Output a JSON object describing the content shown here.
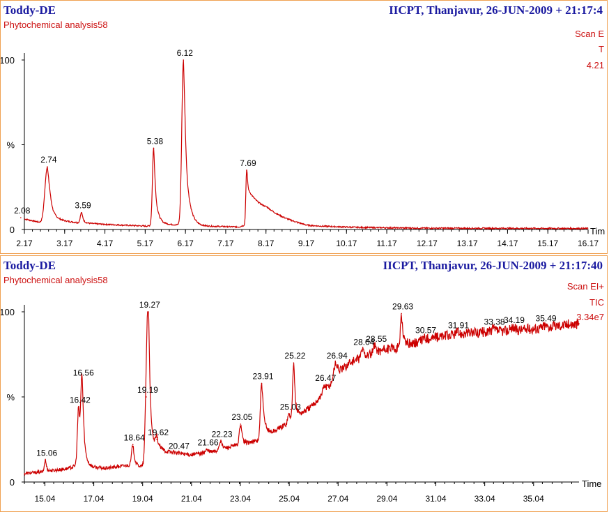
{
  "chart_data": [
    {
      "type": "line",
      "header_left": "Toddy-DE",
      "header_right": "IICPT, Thanjavur,  26-JUN-2009 + 21:17:4",
      "subtitle": "Phytochemical analysis58",
      "info_lines": [
        "Scan E",
        "T",
        "4.21"
      ],
      "xlabel": "Tim",
      "y_ticks": [
        "0",
        "%",
        "100"
      ],
      "x_ticks": [
        "2.17",
        "3.17",
        "4.17",
        "5.17",
        "6.17",
        "7.17",
        "8.17",
        "9.17",
        "10.17",
        "11.17",
        "12.17",
        "13.17",
        "14.17",
        "15.17",
        "16.17"
      ],
      "xlim": [
        2.17,
        16.17
      ],
      "ylim": [
        0,
        100
      ],
      "color": "#cc0000",
      "baseline": [
        [
          2.0,
          7
        ],
        [
          2.6,
          4
        ],
        [
          2.8,
          6
        ],
        [
          3.5,
          4
        ],
        [
          4.2,
          3
        ],
        [
          5.2,
          2
        ],
        [
          5.7,
          3
        ],
        [
          6.6,
          2
        ],
        [
          7.5,
          1.5
        ],
        [
          8.2,
          7
        ],
        [
          9.2,
          2
        ],
        [
          10.5,
          1.2
        ],
        [
          12,
          0.8
        ],
        [
          16.2,
          0.6
        ]
      ],
      "peaks": [
        {
          "x": 2.08,
          "y": 7,
          "w": 0.04,
          "tail": 0.1,
          "label": "2.08"
        },
        {
          "x": 2.74,
          "y": 37,
          "w": 0.06,
          "tail": 0.1,
          "label": "2.74"
        },
        {
          "x": 2.92,
          "y": 4,
          "w": 0.05,
          "tail": 0.08
        },
        {
          "x": 3.59,
          "y": 10,
          "w": 0.03,
          "tail": 0.05,
          "label": "3.59"
        },
        {
          "x": 5.38,
          "y": 48,
          "w": 0.03,
          "tail": 0.08,
          "label": "5.38"
        },
        {
          "x": 6.12,
          "y": 100,
          "w": 0.04,
          "tail": 0.1,
          "label": "6.12"
        },
        {
          "x": 7.69,
          "y": 35,
          "w": 0.02,
          "tail": 0.4,
          "label": "7.69"
        }
      ]
    },
    {
      "type": "line",
      "header_left": "Toddy-DE",
      "header_right": "IICPT, Thanjavur,  26-JUN-2009 + 21:17:40",
      "subtitle": "Phytochemical analysis58",
      "info_lines": [
        "Scan EI+",
        "TIC",
        "3.34e7"
      ],
      "xlabel": "Time",
      "y_ticks": [
        "0",
        "%",
        "100"
      ],
      "x_ticks": [
        "15.04",
        "17.04",
        "19.04",
        "21.04",
        "23.04",
        "25.04",
        "27.04",
        "29.04",
        "31.04",
        "33.04",
        "35.04"
      ],
      "xlim": [
        14.2,
        36.9
      ],
      "ylim": [
        0,
        100
      ],
      "color": "#cc0000",
      "baseline": [
        [
          14.2,
          5
        ],
        [
          15.0,
          6
        ],
        [
          16.0,
          8
        ],
        [
          16.4,
          10
        ],
        [
          16.8,
          9
        ],
        [
          17.5,
          8
        ],
        [
          18.5,
          10
        ],
        [
          19.0,
          9
        ],
        [
          19.6,
          20
        ],
        [
          20.0,
          18
        ],
        [
          21.0,
          16
        ],
        [
          22.0,
          18
        ],
        [
          23.0,
          22
        ],
        [
          24.0,
          25
        ],
        [
          25.0,
          35
        ],
        [
          26.0,
          45
        ],
        [
          26.9,
          60
        ],
        [
          27.5,
          70
        ],
        [
          28.0,
          73
        ],
        [
          29.0,
          78
        ],
        [
          29.6,
          79
        ],
        [
          30.0,
          81
        ],
        [
          31.0,
          85
        ],
        [
          32.0,
          87
        ],
        [
          33.0,
          88
        ],
        [
          34.0,
          89
        ],
        [
          35.0,
          90
        ],
        [
          36.0,
          92
        ],
        [
          36.9,
          93
        ]
      ],
      "peaks": [
        {
          "x": 15.06,
          "y": 13,
          "w": 0.04,
          "tail": 0.06,
          "label": "15.06"
        },
        {
          "x": 16.42,
          "y": 44,
          "w": 0.05,
          "tail": 0.08,
          "label": "16.42"
        },
        {
          "x": 16.56,
          "y": 60,
          "w": 0.05,
          "tail": 0.1,
          "label": "16.56"
        },
        {
          "x": 18.64,
          "y": 22,
          "w": 0.05,
          "tail": 0.08,
          "label": "18.64"
        },
        {
          "x": 19.19,
          "y": 50,
          "w": 0.05,
          "tail": 0.08,
          "label": "19.19"
        },
        {
          "x": 19.27,
          "y": 100,
          "w": 0.05,
          "tail": 0.1,
          "label": "19.27"
        },
        {
          "x": 19.62,
          "y": 25,
          "w": 0.05,
          "tail": 0.1,
          "label": "19.62"
        },
        {
          "x": 20.47,
          "y": 17,
          "w": 0.05,
          "tail": 0.08,
          "label": "20.47"
        },
        {
          "x": 21.66,
          "y": 19,
          "w": 0.05,
          "tail": 0.08,
          "label": "21.66"
        },
        {
          "x": 22.23,
          "y": 24,
          "w": 0.06,
          "tail": 0.1,
          "label": "22.23"
        },
        {
          "x": 23.05,
          "y": 34,
          "w": 0.05,
          "tail": 0.08,
          "label": "23.05"
        },
        {
          "x": 23.91,
          "y": 58,
          "w": 0.05,
          "tail": 0.15,
          "label": "23.91"
        },
        {
          "x": 25.03,
          "y": 40,
          "w": 0.05,
          "tail": 0.1,
          "label": "25.03"
        },
        {
          "x": 25.22,
          "y": 70,
          "w": 0.04,
          "tail": 0.08,
          "label": "25.22"
        },
        {
          "x": 26.47,
          "y": 57,
          "w": 0.05,
          "tail": 0.1,
          "label": "26.47"
        },
        {
          "x": 26.94,
          "y": 70,
          "w": 0.08,
          "tail": 0.15,
          "label": "26.94"
        },
        {
          "x": 28.04,
          "y": 78,
          "w": 0.06,
          "tail": 0.1,
          "label": "28.04"
        },
        {
          "x": 28.55,
          "y": 80,
          "w": 0.06,
          "tail": 0.1,
          "label": "28.55"
        },
        {
          "x": 29.63,
          "y": 99,
          "w": 0.04,
          "tail": 0.1,
          "label": "29.63"
        },
        {
          "x": 30.57,
          "y": 85,
          "w": 0.06,
          "tail": 0.1,
          "label": "30.57"
        },
        {
          "x": 31.91,
          "y": 88,
          "w": 0.06,
          "tail": 0.1,
          "label": "31.91"
        },
        {
          "x": 33.38,
          "y": 90,
          "w": 0.06,
          "tail": 0.1,
          "label": "33.38"
        },
        {
          "x": 34.19,
          "y": 91,
          "w": 0.06,
          "tail": 0.1,
          "label": "34.19"
        },
        {
          "x": 35.49,
          "y": 92,
          "w": 0.06,
          "tail": 0.1,
          "label": "35.49"
        }
      ]
    }
  ]
}
